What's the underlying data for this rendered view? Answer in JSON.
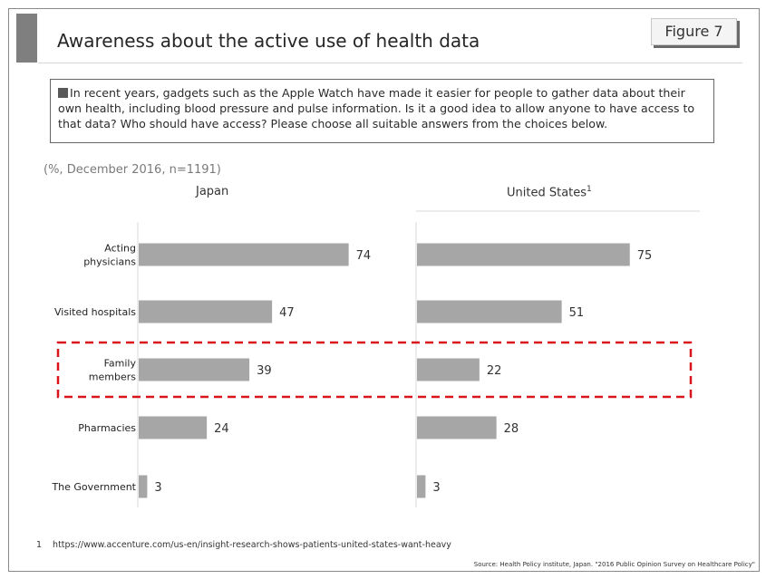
{
  "header": {
    "title": "Awareness about the active use of health data",
    "figure_label": "Figure 7"
  },
  "question": {
    "text": "In recent years, gadgets such as the Apple Watch have made it easier for people to gather data about their own health, including blood pressure and pulse information. Is it a good idea to allow anyone to have access to that data? Who should have access? Please choose all suitable answers from the choices below."
  },
  "chart_note": "(%, December 2016, n=1191)",
  "chart_data": {
    "type": "bar",
    "orientation": "horizontal",
    "categories": [
      "Acting physicians",
      "Visited hospitals",
      "Family members",
      "Pharmacies",
      "The Government"
    ],
    "category_display": [
      [
        "Acting",
        "physicians"
      ],
      [
        "Visited hospitals"
      ],
      [
        "Family",
        "members"
      ],
      [
        "Pharmacies"
      ],
      [
        "The Government"
      ]
    ],
    "panels": [
      {
        "name": "Japan",
        "superscript": "",
        "values": [
          74,
          47,
          39,
          24,
          3
        ]
      },
      {
        "name": "United States",
        "superscript": "1",
        "values": [
          75,
          51,
          22,
          28,
          3
        ]
      }
    ],
    "highlighted_category": "Family members",
    "bar_color": "#a6a6a6",
    "highlight_color": "#d9141b"
  },
  "footnote": {
    "number": "1",
    "text": "https://www.accenture.com/us-en/insight-research-shows-patients-united-states-want-heavy"
  },
  "source": "Source: Health Policy institute, Japan. \"2016 Public Opinion Survey on Healthcare Policy\""
}
